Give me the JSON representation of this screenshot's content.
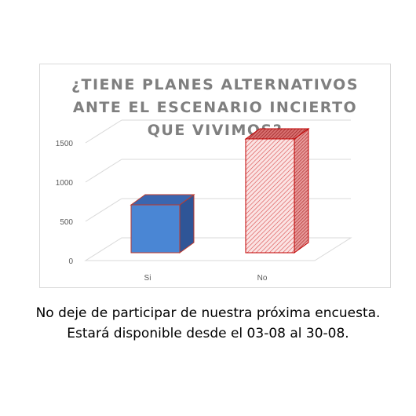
{
  "chart_data": {
    "type": "bar",
    "title_lines": [
      "¿TIENE PLANES ALTERNATIVOS",
      "ANTE EL ESCENARIO INCIERTO",
      "QUE VIVIMOS?"
    ],
    "categories": [
      "Si",
      "No"
    ],
    "values": [
      610,
      1450
    ],
    "y_ticks": [
      0,
      500,
      1000,
      1500
    ],
    "ylim": [
      0,
      1500
    ],
    "three_d": true,
    "grid": true,
    "legend": "none",
    "colors": {
      "Si": "#4a86d4",
      "No": "#f4b6b6"
    }
  },
  "footer": {
    "line1": "No deje de participar de nuestra próxima encuesta.",
    "line2": "Estará disponible desde el 03-08 al 30-08."
  }
}
